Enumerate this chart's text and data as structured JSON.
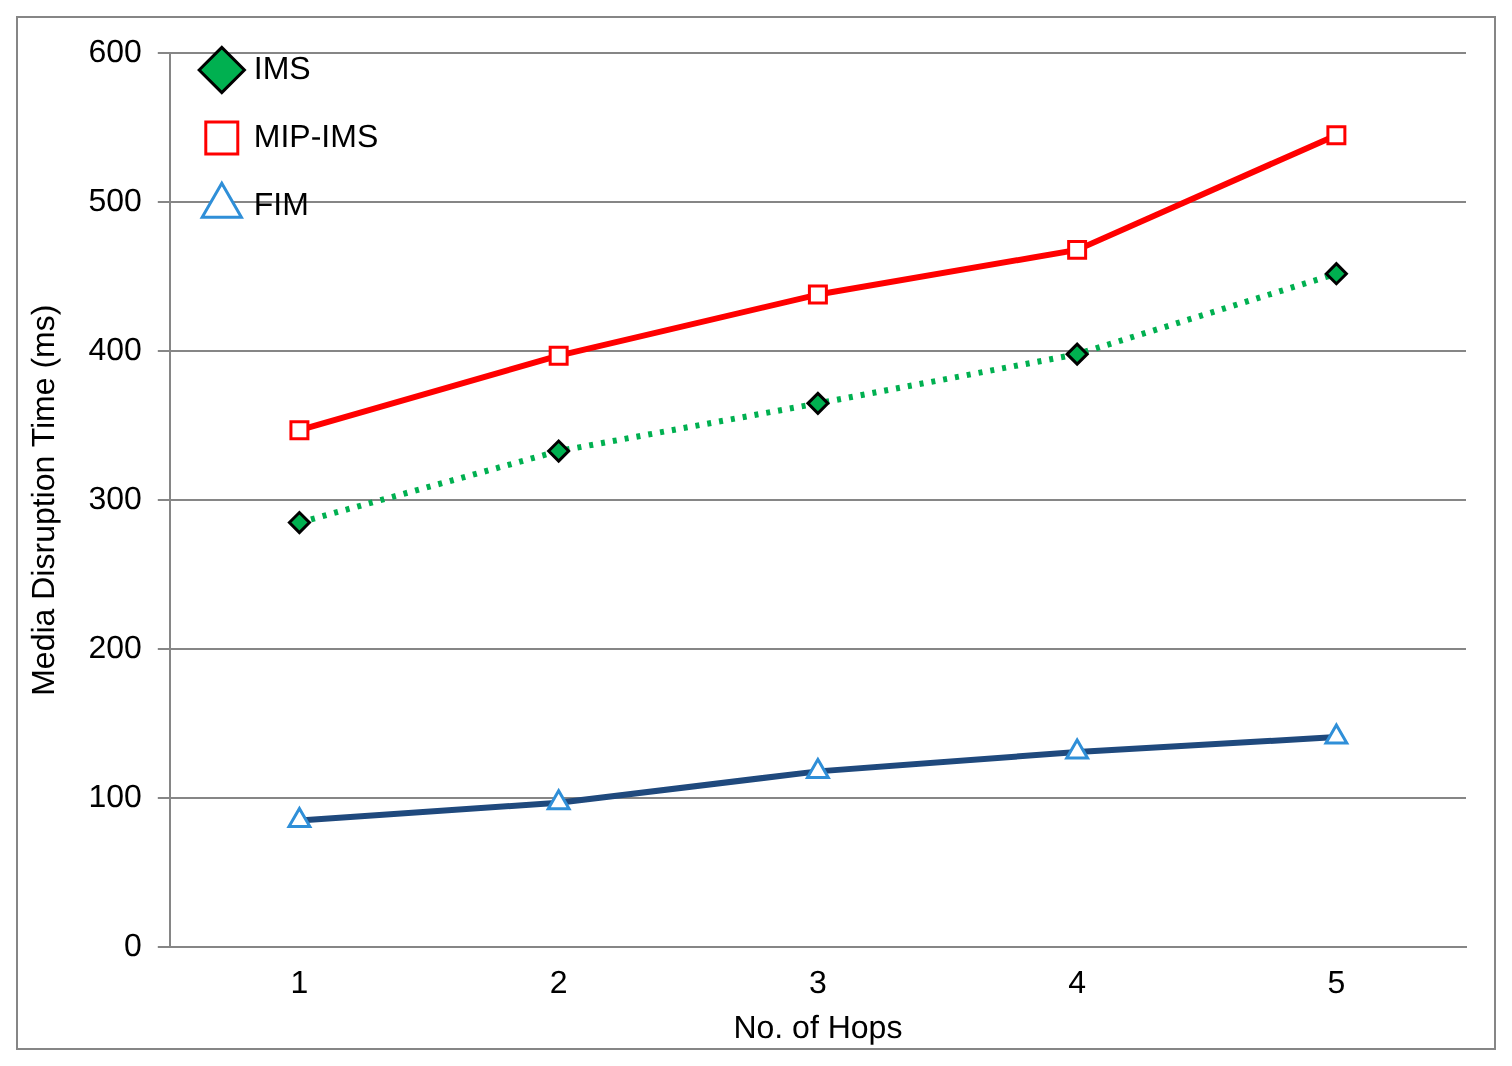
{
  "chart_data": {
    "type": "line",
    "xlabel": "No. of Hops",
    "ylabel": "Media Disruption Time (ms)",
    "categories": [
      "1",
      "2",
      "3",
      "4",
      "5"
    ],
    "series": [
      {
        "name": "IMS",
        "color": "#00b050",
        "values": [
          285,
          333,
          365,
          398,
          452
        ],
        "marker": "diamond",
        "line_style": "dotted"
      },
      {
        "name": "MIP-IMS",
        "color": "#ff0000",
        "values": [
          347,
          397,
          438,
          468,
          545
        ],
        "marker": "square",
        "line_style": "solid"
      },
      {
        "name": "FIM",
        "color": "#1f497d",
        "values": [
          85,
          97,
          118,
          131,
          141
        ],
        "marker": "triangle",
        "line_style": "solid"
      }
    ],
    "ylim": [
      0,
      600
    ],
    "yticks": [
      0,
      100,
      200,
      300,
      400,
      500,
      600
    ],
    "grid": "y",
    "legend": "top left"
  }
}
